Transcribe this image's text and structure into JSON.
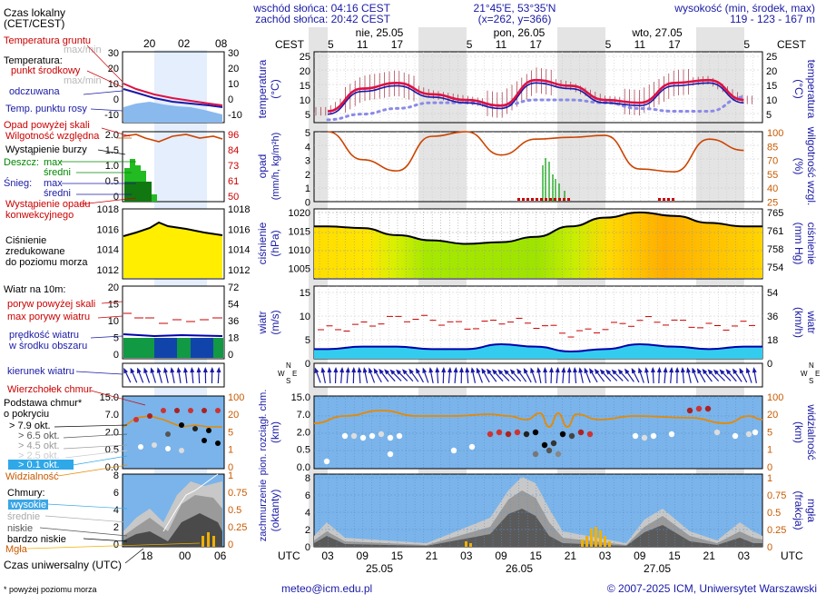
{
  "header": {
    "sunrise": "wschód słońca: 04:16 CEST",
    "sunset": "zachód słońca: 20:42 CEST",
    "coords": "21°45'E, 53°35'N",
    "grid": "(x=262, y=366)",
    "height_label": "wysokość (min, środek, max)",
    "height_values": "119 - 123 - 167 m"
  },
  "time": {
    "cest_label": "CEST",
    "utc_label": "UTC",
    "day_labels_top": [
      "nie, 25.05",
      "pon, 26.05",
      "wto, 27.05"
    ],
    "cest_hours": [
      "05",
      "11",
      "17",
      "23",
      "05",
      "11",
      "17",
      "23",
      "05",
      "11",
      "17",
      "23",
      "05"
    ],
    "utc_hours": [
      "03",
      "09",
      "15",
      "21",
      "03",
      "09",
      "15",
      "21",
      "03",
      "09",
      "15",
      "21",
      "03"
    ],
    "day_labels_bottom": [
      "25.05",
      "26.05",
      "27.05"
    ],
    "legend_top_hours": [
      "20",
      "02",
      "08"
    ],
    "legend_bottom_hours": [
      "18",
      "00",
      "06"
    ]
  },
  "legend": {
    "local_time": [
      "Czas lokalny",
      "(CET/CEST)"
    ],
    "soil_temp": [
      "Temperatura gruntu",
      "max/min"
    ],
    "temperature": "Temperatura:",
    "midpoint": "punkt środkowy",
    "maxmin": "max/min",
    "felt": "odczuwana",
    "dewpoint": "Temp. punktu rosy",
    "precip_above": "Opad powyżej skali",
    "humidity": "Wilgotność względna",
    "storm": "Wystąpienie burzy",
    "rain": "Deszcz:",
    "rain_max": "max",
    "rain_mean": "średni",
    "snow": "Śnieg:",
    "snow_max": "max",
    "snow_mean": "średni",
    "conv": [
      "Wystąpienie opadu",
      "konwekcyjnego"
    ],
    "pressure": [
      "Ciśnienie",
      "zredukowane",
      "do poziomu morza"
    ],
    "wind_at": "Wiatr na 10m:",
    "gust_above": "poryw powyżej skali",
    "gust_max": "max porywy wiatru",
    "wind_speed": [
      "prędkość wiatru",
      "w środku obszaru"
    ],
    "wind_dir": "kierunek wiatru",
    "cloud_top": "Wierzchołek chmur",
    "cloud_base": [
      "Podstawa chmur*",
      "o pokryciu"
    ],
    "octas": [
      "> 7.9 okt.",
      "> 6.5 okt.",
      "> 4.5 okt.",
      "> 2.5 okt.",
      "> 0.1 okt."
    ],
    "visibility": "Widzialność",
    "clouds": "Chmury:",
    "cl_high": "wysokie",
    "cl_mid": "średnie",
    "cl_low": "niskie",
    "cl_vlow": "bardzo niskie",
    "fog": "Mgła",
    "utc_time": "Czas uniwersalny (UTC)",
    "footnote": "* powyżej poziomu morza"
  },
  "axes": {
    "temp_left": [
      "25",
      "20",
      "15",
      "10",
      "5"
    ],
    "temp_right": [
      "25",
      "20",
      "15",
      "10",
      "5"
    ],
    "temp_title": [
      "temperatura",
      "(°C)"
    ],
    "legend_temp_ticks": [
      "30",
      "20",
      "10",
      "0",
      "-10"
    ],
    "precip_left": [
      "5",
      "4",
      "3",
      "2",
      "1",
      "0"
    ],
    "precip_right": [
      "100",
      "85",
      "70",
      "55",
      "40",
      "25"
    ],
    "precip_title": [
      "opad",
      "(mm/h, kg/m²h)"
    ],
    "hum_title": [
      "(%)",
      "wilgotność wzgl."
    ],
    "legend_precip_ticks": [
      "2.0",
      "1.5",
      "1.0",
      "0.5",
      "0"
    ],
    "legend_hum_ticks": [
      "96",
      "84",
      "73",
      "61",
      "50"
    ],
    "press_left": [
      "1020",
      "1015",
      "1010",
      "1005"
    ],
    "press_right": [
      "765",
      "761",
      "758",
      "754"
    ],
    "press_title": [
      "ciśnienie",
      "(hPa)"
    ],
    "press_title_r": [
      "(mm Hg)",
      "ciśnienie"
    ],
    "legend_press_ticks": [
      "1018",
      "1016",
      "1014",
      "1012"
    ],
    "wind_left": [
      "15",
      "10",
      "5",
      "0"
    ],
    "wind_right": [
      "54",
      "36",
      "18",
      "0"
    ],
    "wind_title": [
      "wiatr",
      "(m/s)"
    ],
    "wind_title_r": [
      "(km/h)",
      "wiatr"
    ],
    "legend_wind_ticks": [
      "20",
      "15",
      "10",
      "5",
      "0"
    ],
    "legend_wind_right": [
      "72",
      "54",
      "36",
      "18",
      "0"
    ],
    "compass": [
      "N",
      "W",
      "E",
      "S"
    ],
    "cloudbase_left": [
      "15.0",
      "7.0",
      "2.0",
      "0.5",
      "0.0"
    ],
    "cloudbase_right": [
      "100",
      "20",
      "5",
      "1",
      "0"
    ],
    "cloudbase_title": [
      "pion. rozciągł. chm.",
      "(km)"
    ],
    "vis_title": [
      "(km)",
      "widzialność"
    ],
    "legend_cb_ticks": [
      "15.0",
      "7.0",
      "2.0",
      "0.5",
      "0.0"
    ],
    "legend_vis_ticks": [
      "100",
      "20",
      "5",
      "1",
      "0"
    ],
    "cloud_left": [
      "8",
      "6",
      "4",
      "2",
      "0"
    ],
    "cloud_right": [
      "1",
      "0.75",
      "0.5",
      "0.25",
      "0"
    ],
    "cloud_title": [
      "zachmurzenie",
      "(oktanty)"
    ],
    "fog_title": [
      "(frakcja)",
      "mgła"
    ],
    "legend_cloud_ticks": [
      "8",
      "6",
      "4",
      "2",
      "0"
    ],
    "legend_fog_ticks": [
      "1",
      "0.75",
      "0.5",
      "0.25",
      "0"
    ]
  },
  "footer": {
    "email": "meteo@icm.edu.pl",
    "copyright": "© 2007-2025 ICM, Uniwersytet Warszawski"
  },
  "colors": {
    "temp_line": "#dd1144",
    "felt": "#1a1aa6",
    "dewpoint": "#8a8ae8",
    "humidity": "#cc4400",
    "pressure_line": "#000000",
    "wind_fill": "#33ccee",
    "wind_line": "#0000aa",
    "gust": "#cc0000",
    "sky": "#7ab4ea",
    "visibility": "#e88800",
    "fog": "#f0b000"
  },
  "chart_data": [
    {
      "type": "line",
      "name": "temperature",
      "x_hours": [
        0,
        6,
        12,
        18,
        24,
        30,
        36,
        42,
        48,
        54,
        60,
        66,
        72
      ],
      "midpoint": [
        6,
        14,
        16,
        12,
        10,
        8,
        17,
        15,
        10,
        9,
        16,
        17,
        10
      ],
      "felt": [
        5,
        13,
        15,
        11,
        9,
        7,
        16,
        14,
        9,
        8,
        15,
        16,
        9
      ],
      "dewpoint": [
        3,
        5,
        7,
        9,
        9,
        8,
        10,
        10,
        9,
        7,
        6,
        6,
        11
      ],
      "ylim": [
        2,
        27
      ]
    },
    {
      "type": "line",
      "name": "humidity",
      "x_hours": [
        0,
        6,
        12,
        18,
        24,
        30,
        36,
        42,
        48,
        54,
        60,
        66,
        72
      ],
      "values": [
        100,
        70,
        58,
        95,
        100,
        75,
        92,
        94,
        96,
        60,
        57,
        92,
        80
      ],
      "ylim": [
        25,
        100
      ]
    },
    {
      "type": "area",
      "name": "pressure",
      "x_hours": [
        0,
        6,
        12,
        18,
        24,
        30,
        36,
        42,
        48,
        54,
        60,
        66,
        72
      ],
      "values": [
        1017,
        1016.5,
        1014.5,
        1013,
        1012,
        1012.5,
        1014,
        1017,
        1019.5,
        1021,
        1020,
        1018,
        1017
      ],
      "ylim": [
        1002,
        1022
      ]
    },
    {
      "type": "area",
      "name": "wind",
      "x_hours": [
        0,
        6,
        12,
        18,
        24,
        30,
        36,
        42,
        48,
        54,
        60,
        66,
        72
      ],
      "speed": [
        2,
        2.5,
        2.5,
        2,
        2,
        3,
        2.5,
        1.5,
        2,
        3,
        2.5,
        2,
        2.5
      ],
      "gust": [
        6,
        7,
        8.5,
        8,
        6.5,
        8,
        7,
        5,
        6.5,
        8,
        7.5,
        6.5,
        7
      ],
      "ylim": [
        0,
        15
      ]
    }
  ]
}
